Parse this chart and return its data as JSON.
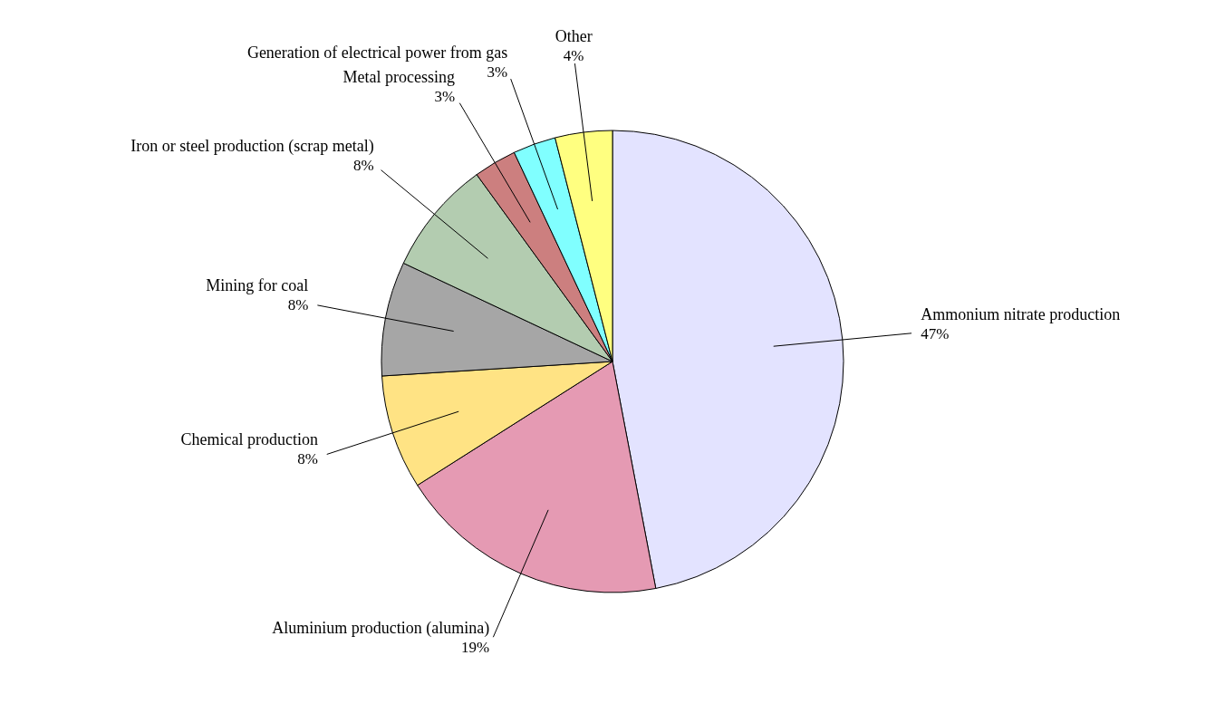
{
  "chart_data": {
    "type": "pie",
    "categories": [
      "Ammonium nitrate production",
      "Aluminium production (alumina)",
      "Chemical production",
      "Mining for coal",
      "Iron or steel production (scrap metal)",
      "Metal processing",
      "Generation of electrical power from gas",
      "Other"
    ],
    "values": [
      47,
      19,
      8,
      8,
      8,
      3,
      3,
      4
    ],
    "value_labels": [
      "47%",
      "19%",
      "8%",
      "8%",
      "8%",
      "3%",
      "3%",
      "4%"
    ],
    "colors": [
      "#e3e3ff",
      "#e59ab3",
      "#ffe384",
      "#a6a6a6",
      "#b3ccb0",
      "#cc7f7f",
      "#80ffff",
      "#ffff80"
    ]
  }
}
